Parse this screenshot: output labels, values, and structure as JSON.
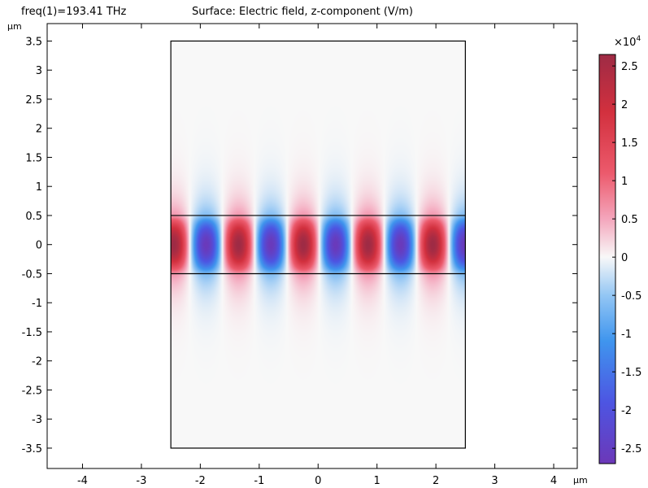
{
  "header": {
    "freq_label": "freq(1)=193.41 THz",
    "title": "Surface: Electric field, z-component (V/m)"
  },
  "chart_data": {
    "type": "heatmap",
    "title": "Surface: Electric field, z-component (V/m)",
    "xlabel": "µm",
    "ylabel": "µm",
    "xlim": [
      -4.6,
      4.4
    ],
    "ylim": [
      -3.85,
      3.8
    ],
    "x_ticks": [
      -4,
      -3,
      -2,
      -1,
      0,
      1,
      2,
      3,
      4
    ],
    "x_tick_labels": [
      "-4",
      "-3",
      "-2",
      "-1",
      "0",
      "1",
      "2",
      "3",
      "4"
    ],
    "y_ticks": [
      -3.5,
      -3,
      -2.5,
      -2,
      -1.5,
      -1,
      -0.5,
      0,
      0.5,
      1,
      1.5,
      2,
      2.5,
      3,
      3.5
    ],
    "y_tick_labels": [
      "-3.5",
      "-3",
      "-2.5",
      "-2",
      "-1.5",
      "-1",
      "-0.5",
      "0",
      "0.5",
      "1",
      "1.5",
      "2",
      "2.5",
      "3",
      "3.5"
    ],
    "domain": {
      "x": [
        -2.5,
        2.5
      ],
      "y": [
        -3.5,
        3.5
      ]
    },
    "waveguide_core": {
      "y": [
        -0.5,
        0.5
      ]
    },
    "field": {
      "component": "Ez",
      "amplitude": 26500,
      "wavelength_um": 1.1,
      "first_peak_x": -2.45,
      "first_peak_sign": 1,
      "core_width_um": 1.0
    },
    "colorbar": {
      "multiplier": "×10",
      "exponent": "4",
      "range": [
        -2.7,
        2.65
      ],
      "ticks": [
        2.5,
        2,
        1.5,
        1,
        0.5,
        0,
        -0.5,
        -1,
        -1.5,
        -2,
        -2.5
      ],
      "tick_labels": [
        "2.5",
        "2",
        "1.5",
        "1",
        "0.5",
        "0",
        "-0.5",
        "-1",
        "-1.5",
        "-2",
        "-2.5"
      ],
      "colormap": [
        [
          -2.7,
          "#6c38b8"
        ],
        [
          -1.9,
          "#4d55e2"
        ],
        [
          -1.1,
          "#3f95ee"
        ],
        [
          -0.5,
          "#93c6f4"
        ],
        [
          0,
          "#f8f8f8"
        ],
        [
          0.5,
          "#f4a6bc"
        ],
        [
          1.1,
          "#ec5a6c"
        ],
        [
          1.9,
          "#d2303e"
        ],
        [
          2.65,
          "#9e2b45"
        ]
      ]
    }
  }
}
